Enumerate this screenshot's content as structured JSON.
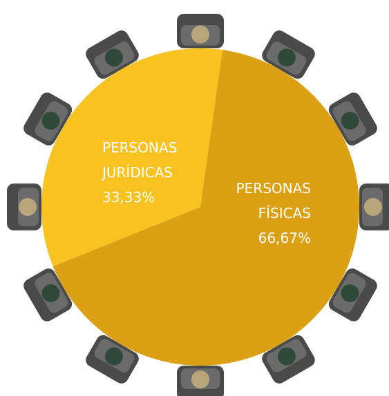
{
  "chart_data": {
    "type": "pie",
    "categories": [
      "PERSONAS JURÍDICAS",
      "PERSONAS FÍSICAS"
    ],
    "values": [
      33.33,
      66.67
    ],
    "value_labels": [
      "33,33%",
      "66,67%"
    ],
    "colors": [
      "#f8c220",
      "#dca015"
    ]
  }
}
